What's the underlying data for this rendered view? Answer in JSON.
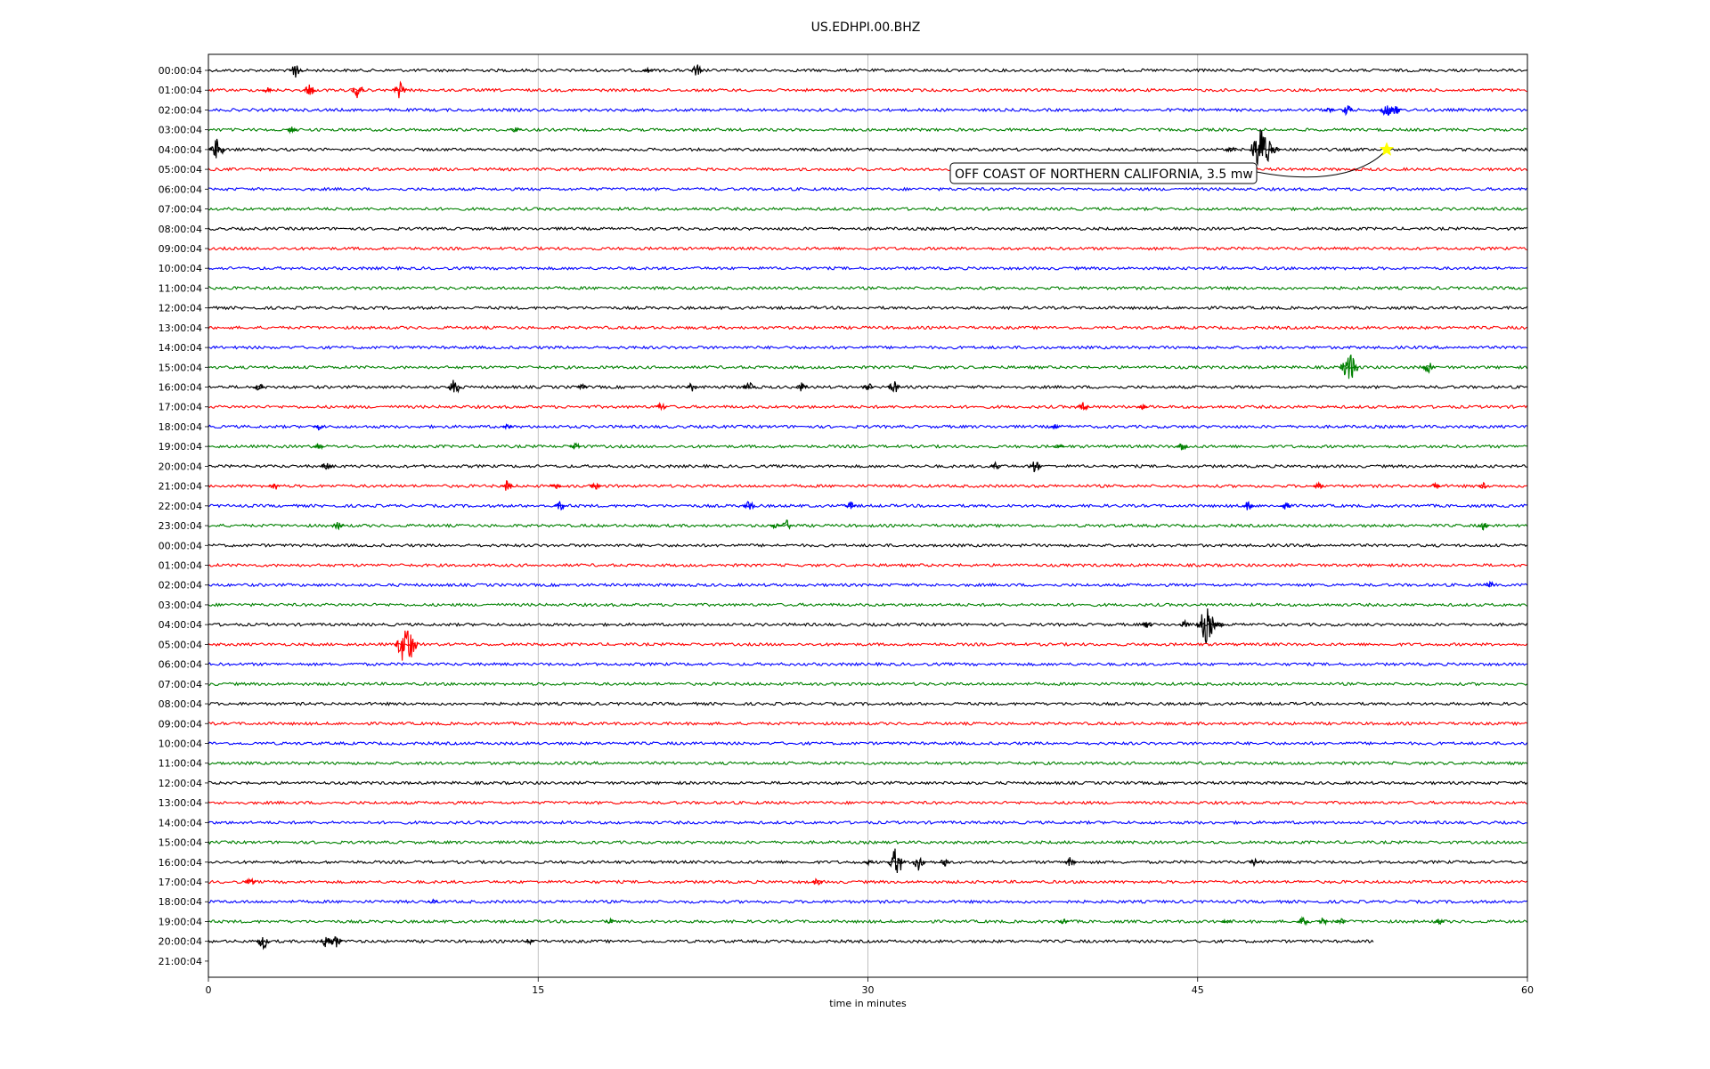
{
  "chart_data": {
    "type": "line",
    "title": "US.EDHPI.00.BHZ",
    "xlabel": "time in minutes",
    "ylabel": "",
    "xlim": [
      0,
      60
    ],
    "xticks": [
      "0",
      "15",
      "30",
      "45",
      "60"
    ],
    "grid": "vertical",
    "line_colors": [
      "#000000",
      "#ff0000",
      "#0000ff",
      "#008000"
    ],
    "row_labels": [
      "00:00:04",
      "01:00:04",
      "02:00:04",
      "03:00:04",
      "04:00:04",
      "05:00:04",
      "06:00:04",
      "07:00:04",
      "08:00:04",
      "09:00:04",
      "10:00:04",
      "11:00:04",
      "12:00:04",
      "13:00:04",
      "14:00:04",
      "15:00:04",
      "16:00:04",
      "17:00:04",
      "18:00:04",
      "19:00:04",
      "20:00:04",
      "21:00:04",
      "22:00:04",
      "23:00:04",
      "00:00:04",
      "01:00:04",
      "02:00:04",
      "03:00:04",
      "04:00:04",
      "05:00:04",
      "06:00:04",
      "07:00:04",
      "08:00:04",
      "09:00:04",
      "10:00:04",
      "11:00:04",
      "12:00:04",
      "13:00:04",
      "14:00:04",
      "15:00:04",
      "16:00:04",
      "17:00:04",
      "18:00:04",
      "19:00:04",
      "20:00:04",
      "21:00:04"
    ],
    "last_trace_end_minute": 53,
    "events": [
      [
        0,
        4.0,
        10
      ],
      [
        0,
        22.2,
        8
      ],
      [
        0,
        20.0,
        4
      ],
      [
        1,
        4.6,
        8
      ],
      [
        1,
        6.8,
        10
      ],
      [
        1,
        8.7,
        10
      ],
      [
        1,
        2.7,
        4
      ],
      [
        2,
        51.8,
        7
      ],
      [
        2,
        53.6,
        10
      ],
      [
        2,
        54.0,
        7
      ],
      [
        2,
        51.0,
        4
      ],
      [
        3,
        3.8,
        5
      ],
      [
        3,
        14.0,
        4
      ],
      [
        4,
        0.4,
        14
      ],
      [
        4,
        47.9,
        30
      ],
      [
        4,
        46.5,
        5
      ],
      [
        4,
        48.5,
        6
      ],
      [
        15,
        51.9,
        20
      ],
      [
        15,
        55.5,
        8
      ],
      [
        16,
        2.3,
        5
      ],
      [
        16,
        11.2,
        10
      ],
      [
        16,
        17.0,
        4
      ],
      [
        16,
        22.0,
        6
      ],
      [
        16,
        24.6,
        8
      ],
      [
        16,
        27.0,
        6
      ],
      [
        16,
        30.0,
        6
      ],
      [
        16,
        31.2,
        8
      ],
      [
        17,
        20.6,
        5
      ],
      [
        17,
        39.8,
        6
      ],
      [
        17,
        42.5,
        3
      ],
      [
        18,
        5.0,
        4
      ],
      [
        18,
        13.6,
        3
      ],
      [
        18,
        38.5,
        3
      ],
      [
        19,
        5.0,
        5
      ],
      [
        19,
        16.7,
        5
      ],
      [
        19,
        38.7,
        4
      ],
      [
        19,
        44.3,
        5
      ],
      [
        20,
        5.4,
        6
      ],
      [
        20,
        35.8,
        5
      ],
      [
        20,
        37.6,
        8
      ],
      [
        21,
        3.0,
        6
      ],
      [
        21,
        13.6,
        8
      ],
      [
        21,
        15.8,
        4
      ],
      [
        21,
        17.6,
        5
      ],
      [
        21,
        50.5,
        4
      ],
      [
        21,
        55.8,
        4
      ],
      [
        21,
        58.0,
        4
      ],
      [
        22,
        16.0,
        6
      ],
      [
        22,
        24.6,
        7
      ],
      [
        22,
        29.2,
        5
      ],
      [
        22,
        47.3,
        6
      ],
      [
        22,
        49.0,
        5
      ],
      [
        23,
        5.9,
        5
      ],
      [
        23,
        25.8,
        4
      ],
      [
        23,
        26.3,
        7
      ],
      [
        23,
        58.0,
        5
      ],
      [
        26,
        58.3,
        5
      ],
      [
        28,
        45.4,
        22
      ],
      [
        28,
        42.7,
        5
      ],
      [
        28,
        44.4,
        5
      ],
      [
        28,
        46.0,
        4
      ],
      [
        29,
        9.0,
        28
      ],
      [
        40,
        31.3,
        18
      ],
      [
        40,
        32.3,
        10
      ],
      [
        40,
        33.5,
        5
      ],
      [
        40,
        39.2,
        6
      ],
      [
        40,
        47.6,
        5
      ],
      [
        40,
        30.0,
        3
      ],
      [
        41,
        1.9,
        5
      ],
      [
        41,
        27.7,
        5
      ],
      [
        42,
        10.2,
        3
      ],
      [
        43,
        18.3,
        3
      ],
      [
        43,
        38.9,
        4
      ],
      [
        43,
        46.3,
        3
      ],
      [
        43,
        49.8,
        6
      ],
      [
        43,
        50.7,
        5
      ],
      [
        43,
        51.5,
        4
      ],
      [
        43,
        56.0,
        4
      ],
      [
        44,
        2.5,
        10
      ],
      [
        44,
        5.4,
        9
      ],
      [
        44,
        5.8,
        8
      ],
      [
        44,
        14.6,
        4
      ]
    ],
    "annotations": [
      {
        "row": 4,
        "minute": 53.6,
        "text": "OFF COAST OF NORTHERN CALIFORNIA, 3.5 mw",
        "marker": "star",
        "marker_color": "#ffff00"
      }
    ]
  }
}
